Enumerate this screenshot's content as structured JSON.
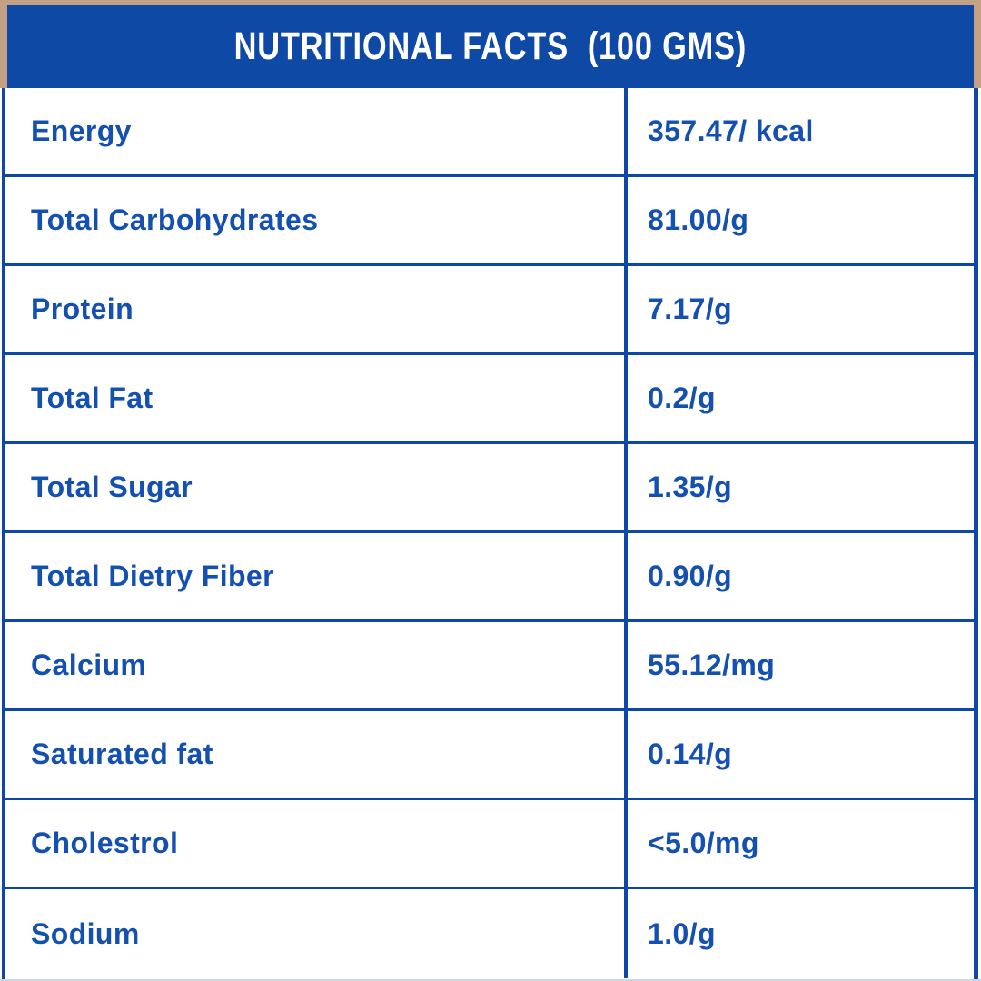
{
  "header": {
    "title": "NUTRITIONAL FACTS  (100 GMS)"
  },
  "table": {
    "rows": [
      {
        "label": "Energy",
        "value": "357.47/ kcal"
      },
      {
        "label": "Total Carbohydrates",
        "value": "81.00/g"
      },
      {
        "label": "Protein",
        "value": "7.17/g"
      },
      {
        "label": "Total Fat",
        "value": "0.2/g"
      },
      {
        "label": "Total Sugar",
        "value": "1.35/g"
      },
      {
        "label": "Total Dietry Fiber",
        "value": "0.90/g"
      },
      {
        "label": "Calcium",
        "value": "55.12/mg"
      },
      {
        "label": "Saturated fat",
        "value": "0.14/g"
      },
      {
        "label": "Cholestrol",
        "value": "<5.0/mg"
      },
      {
        "label": "Sodium",
        "value": "1.0/g"
      }
    ]
  },
  "colors": {
    "header_background": "#0E49A6",
    "border_blue": "#0D47A8",
    "text_blue": "#1450B0",
    "frame_tan": "#C4A084",
    "background": "#FFFFFF",
    "header_text": "#FFFFFF"
  }
}
